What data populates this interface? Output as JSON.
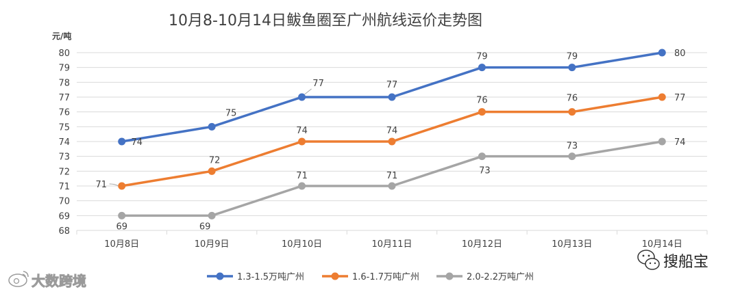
{
  "chart_data": {
    "type": "line",
    "title": "10月8-10月14日鲅鱼圈至广州航线运价走势图",
    "ylabel": "元/吨",
    "xlabel": "",
    "categories": [
      "10月8日",
      "10月9日",
      "10月10日",
      "10月11日",
      "10月12日",
      "10月13日",
      "10月14日"
    ],
    "ylim": [
      68,
      80
    ],
    "yticks": [
      68,
      69,
      70,
      71,
      72,
      73,
      74,
      75,
      76,
      77,
      78,
      79,
      80
    ],
    "grid": true,
    "legend_position": "bottom",
    "series": [
      {
        "name": "1.3-1.5万吨广州",
        "color": "#4472C4",
        "values": [
          74,
          75,
          77,
          77,
          79,
          79,
          80
        ]
      },
      {
        "name": "1.6-1.7万吨广州",
        "color": "#ED7D31",
        "values": [
          71,
          72,
          74,
          74,
          76,
          76,
          77
        ]
      },
      {
        "name": "2.0-2.2万吨广州",
        "color": "#A5A5A5",
        "values": [
          69,
          69,
          71,
          71,
          73,
          73,
          74
        ]
      }
    ]
  },
  "watermarks": {
    "left": "大数跨境",
    "right": "搜船宝",
    "left_icon": "weibo-icon",
    "right_icon": "wechat-icon"
  }
}
